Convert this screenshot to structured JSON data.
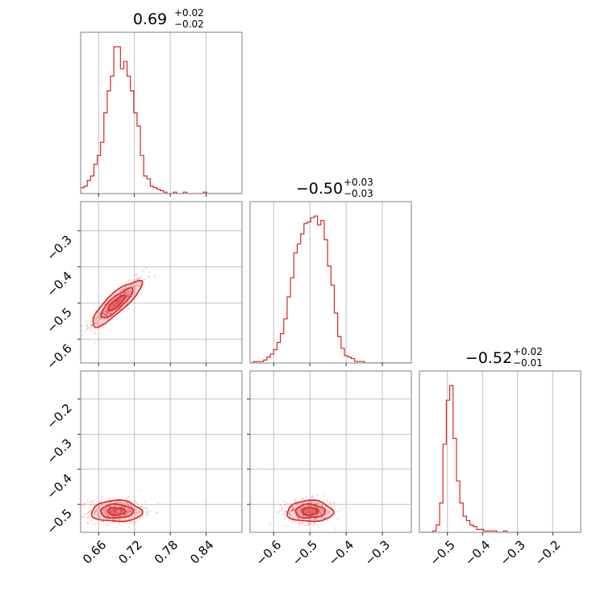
{
  "chart_data": {
    "type": "corner",
    "color": "#d62728",
    "parameters": [
      {
        "median": "0.69",
        "plus": "+0.02",
        "minus": "−0.02",
        "range": [
          0.63,
          0.9
        ],
        "ticks": [
          0.66,
          0.72,
          0.78,
          0.84
        ],
        "tick_labels": [
          "0.66",
          "0.72",
          "0.78",
          "0.84"
        ]
      },
      {
        "median": "−0.50",
        "plus": "+0.03",
        "minus": "−0.03",
        "range": [
          -0.665,
          -0.22
        ],
        "ticks": [
          -0.6,
          -0.5,
          -0.4,
          -0.3
        ],
        "tick_labels": [
          "−0.6",
          "−0.5",
          "−0.4",
          "−0.3"
        ]
      },
      {
        "median": "−0.52",
        "plus": "+0.02",
        "minus": "−0.01",
        "range": [
          -0.58,
          -0.12
        ],
        "ticks": [
          -0.5,
          -0.4,
          -0.3,
          -0.2
        ],
        "tick_labels": [
          "−0.5",
          "−0.4",
          "−0.3",
          "−0.2"
        ]
      }
    ],
    "histograms": [
      {
        "param": 0,
        "bin_start": 0.63,
        "bin_width": 0.00555,
        "counts": [
          4,
          5,
          9,
          12,
          20,
          26,
          35,
          55,
          70,
          80,
          100,
          100,
          85,
          90,
          80,
          70,
          55,
          46,
          26,
          12,
          10,
          5,
          4,
          3,
          2,
          1,
          0,
          0,
          1,
          0,
          0,
          1,
          0,
          0,
          0,
          0,
          0,
          1,
          0,
          0,
          0,
          0,
          0,
          0,
          0,
          0,
          0,
          0
        ]
      },
      {
        "param": 1,
        "bin_start": -0.665,
        "bin_width": 0.0093,
        "counts": [
          0,
          1,
          1,
          1,
          2,
          4,
          6,
          9,
          14,
          20,
          30,
          45,
          58,
          75,
          81,
          88,
          95,
          96,
          99,
          100,
          94,
          97,
          84,
          66,
          53,
          34,
          18,
          10,
          5,
          4,
          3,
          1,
          1,
          1,
          0,
          0,
          0,
          0,
          0,
          0,
          0,
          0,
          0,
          0,
          0,
          0,
          0,
          0
        ]
      },
      {
        "param": 2,
        "bin_start": -0.58,
        "bin_width": 0.0096,
        "counts": [
          0,
          0,
          0,
          0,
          1,
          5,
          20,
          60,
          90,
          100,
          64,
          35,
          20,
          11,
          8,
          5,
          4,
          2,
          2,
          1,
          1,
          1,
          1,
          0,
          0,
          1,
          0,
          0,
          0,
          0,
          0,
          0,
          0,
          0,
          0,
          0,
          0,
          0,
          0,
          0,
          0,
          0,
          0,
          0,
          0,
          0,
          0,
          0
        ]
      }
    ],
    "pairs": [
      {
        "x_param": 0,
        "y_param": 1,
        "correlation": 0.9,
        "sigma_x": 0.02,
        "sigma_y": 0.03
      },
      {
        "x_param": 0,
        "y_param": 2,
        "correlation": 0.0,
        "sigma_x": 0.02,
        "sigma_y": 0.015
      },
      {
        "x_param": 1,
        "y_param": 2,
        "correlation": 0.0,
        "sigma_x": 0.03,
        "sigma_y": 0.015
      }
    ],
    "grid": true
  }
}
